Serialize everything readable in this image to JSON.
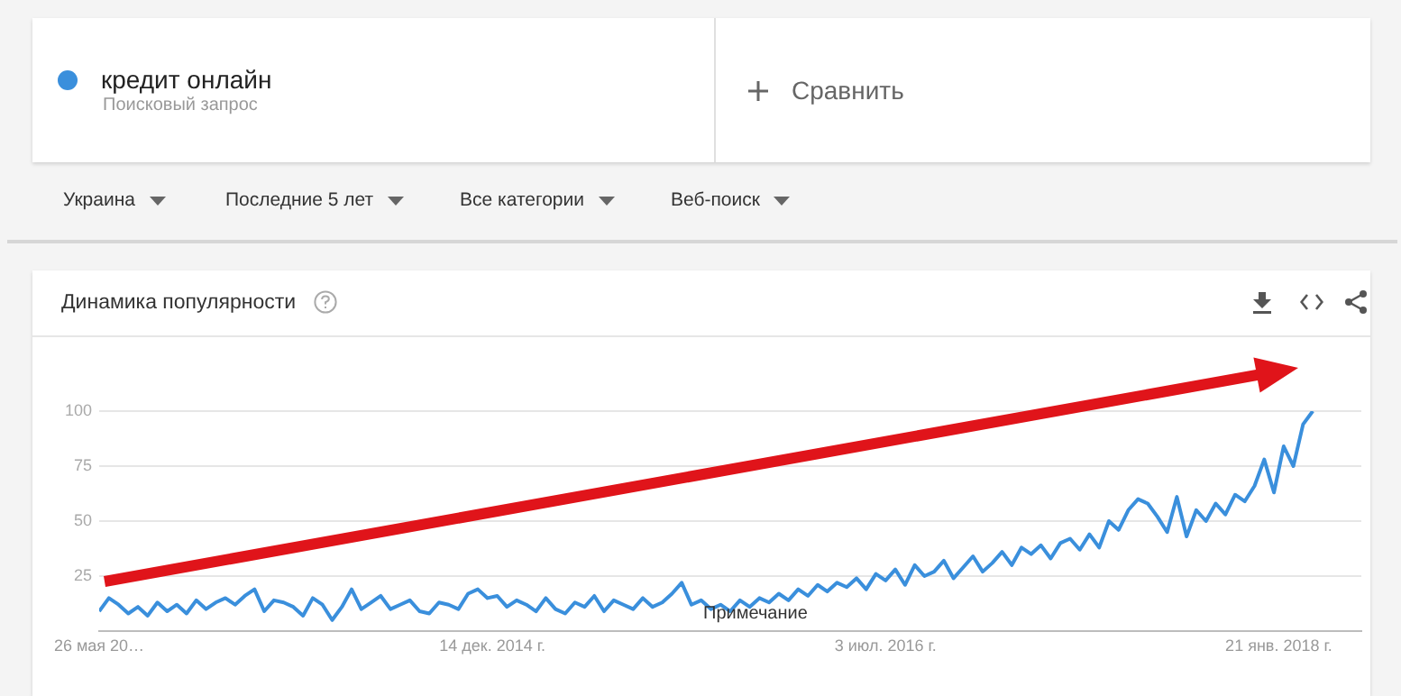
{
  "chart_data": {
    "type": "line",
    "title": "Динамика популярности",
    "x": [
      "2013-05-26",
      "2013-06-09",
      "2013-06-23",
      "2013-07-07",
      "2013-07-21",
      "2013-08-04",
      "2013-08-18",
      "2013-09-01",
      "2013-09-15",
      "2013-09-29",
      "2013-10-13",
      "2013-10-27",
      "2013-11-10",
      "2013-11-24",
      "2013-12-08",
      "2013-12-22",
      "2014-01-05",
      "2014-01-19",
      "2014-02-02",
      "2014-02-16",
      "2014-03-02",
      "2014-03-16",
      "2014-03-30",
      "2014-04-13",
      "2014-04-27",
      "2014-05-11",
      "2014-05-25",
      "2014-06-08",
      "2014-06-22",
      "2014-07-06",
      "2014-07-20",
      "2014-08-03",
      "2014-08-17",
      "2014-08-31",
      "2014-09-14",
      "2014-09-28",
      "2014-10-12",
      "2014-10-26",
      "2014-11-09",
      "2014-11-23",
      "2014-12-07",
      "2014-12-21",
      "2015-01-04",
      "2015-01-18",
      "2015-02-01",
      "2015-02-15",
      "2015-03-01",
      "2015-03-15",
      "2015-03-29",
      "2015-04-12",
      "2015-04-26",
      "2015-05-10",
      "2015-05-24",
      "2015-06-07",
      "2015-06-21",
      "2015-07-05",
      "2015-07-19",
      "2015-08-02",
      "2015-08-16",
      "2015-08-30",
      "2015-09-13",
      "2015-09-27",
      "2015-10-11",
      "2015-10-25",
      "2015-11-08",
      "2015-11-22",
      "2015-12-06",
      "2015-12-20",
      "2016-01-03",
      "2016-01-17",
      "2016-01-31",
      "2016-02-14",
      "2016-02-28",
      "2016-03-13",
      "2016-03-27",
      "2016-04-10",
      "2016-04-24",
      "2016-05-08",
      "2016-05-22",
      "2016-06-05",
      "2016-06-19",
      "2016-07-03",
      "2016-07-17",
      "2016-07-31",
      "2016-08-14",
      "2016-08-28",
      "2016-09-11",
      "2016-09-25",
      "2016-10-09",
      "2016-10-23",
      "2016-11-06",
      "2016-11-20",
      "2016-12-04",
      "2016-12-18",
      "2017-01-01",
      "2017-01-15",
      "2017-01-29",
      "2017-02-12",
      "2017-02-26",
      "2017-03-12",
      "2017-03-26",
      "2017-04-09",
      "2017-04-23",
      "2017-05-07",
      "2017-05-21",
      "2017-06-04",
      "2017-06-18",
      "2017-07-02",
      "2017-07-16",
      "2017-07-30",
      "2017-08-13",
      "2017-08-27",
      "2017-09-10",
      "2017-09-24",
      "2017-10-08",
      "2017-10-22",
      "2017-11-05",
      "2017-11-19",
      "2017-12-03",
      "2017-12-17",
      "2017-12-31",
      "2018-01-14",
      "2018-01-28",
      "2018-02-11",
      "2018-02-25",
      "2018-03-11"
    ],
    "series": [
      {
        "name": "кредит онлайн",
        "color": "#3a8fdc",
        "values": [
          9,
          15,
          12,
          8,
          11,
          7,
          13,
          9,
          12,
          8,
          14,
          10,
          13,
          15,
          12,
          16,
          19,
          9,
          14,
          13,
          11,
          7,
          15,
          12,
          5,
          11,
          19,
          10,
          13,
          16,
          10,
          12,
          14,
          9,
          8,
          13,
          12,
          10,
          17,
          19,
          15,
          16,
          11,
          14,
          12,
          9,
          15,
          10,
          8,
          13,
          11,
          16,
          9,
          14,
          12,
          10,
          15,
          11,
          13,
          17,
          22,
          12,
          14,
          10,
          12,
          9,
          14,
          11,
          15,
          13,
          17,
          14,
          19,
          16,
          21,
          18,
          22,
          20,
          24,
          19,
          26,
          23,
          28,
          21,
          30,
          25,
          27,
          32,
          24,
          29,
          34,
          27,
          31,
          36,
          30,
          38,
          35,
          39,
          33,
          40,
          42,
          37,
          44,
          38,
          50,
          46,
          55,
          60,
          58,
          52,
          45,
          61,
          43,
          55,
          50,
          58,
          53,
          62,
          59,
          66,
          78,
          63,
          84,
          75,
          94,
          100
        ]
      }
    ],
    "xlim": [
      "2013-05-26",
      "2018-05-20"
    ],
    "xticks": [
      {
        "value": "2013-05-26",
        "label": "26 мая 20…"
      },
      {
        "value": "2014-12-14",
        "label": "14 дек. 2014 г."
      },
      {
        "value": "2016-07-03",
        "label": "3 июл. 2016 г."
      },
      {
        "value": "2018-01-21",
        "label": "21 янв. 2018 г."
      }
    ],
    "ylim": [
      0,
      100
    ],
    "yticks": [
      25,
      50,
      75,
      100
    ],
    "grid": "y",
    "legend": "top left",
    "marker": "none",
    "line_style": "solid",
    "annotations": [
      "Поисковый запрос",
      "Сравнить",
      "Украина",
      "Последние 5 лет",
      "Все категории",
      "Веб-поиск",
      "Примечание"
    ]
  }
}
